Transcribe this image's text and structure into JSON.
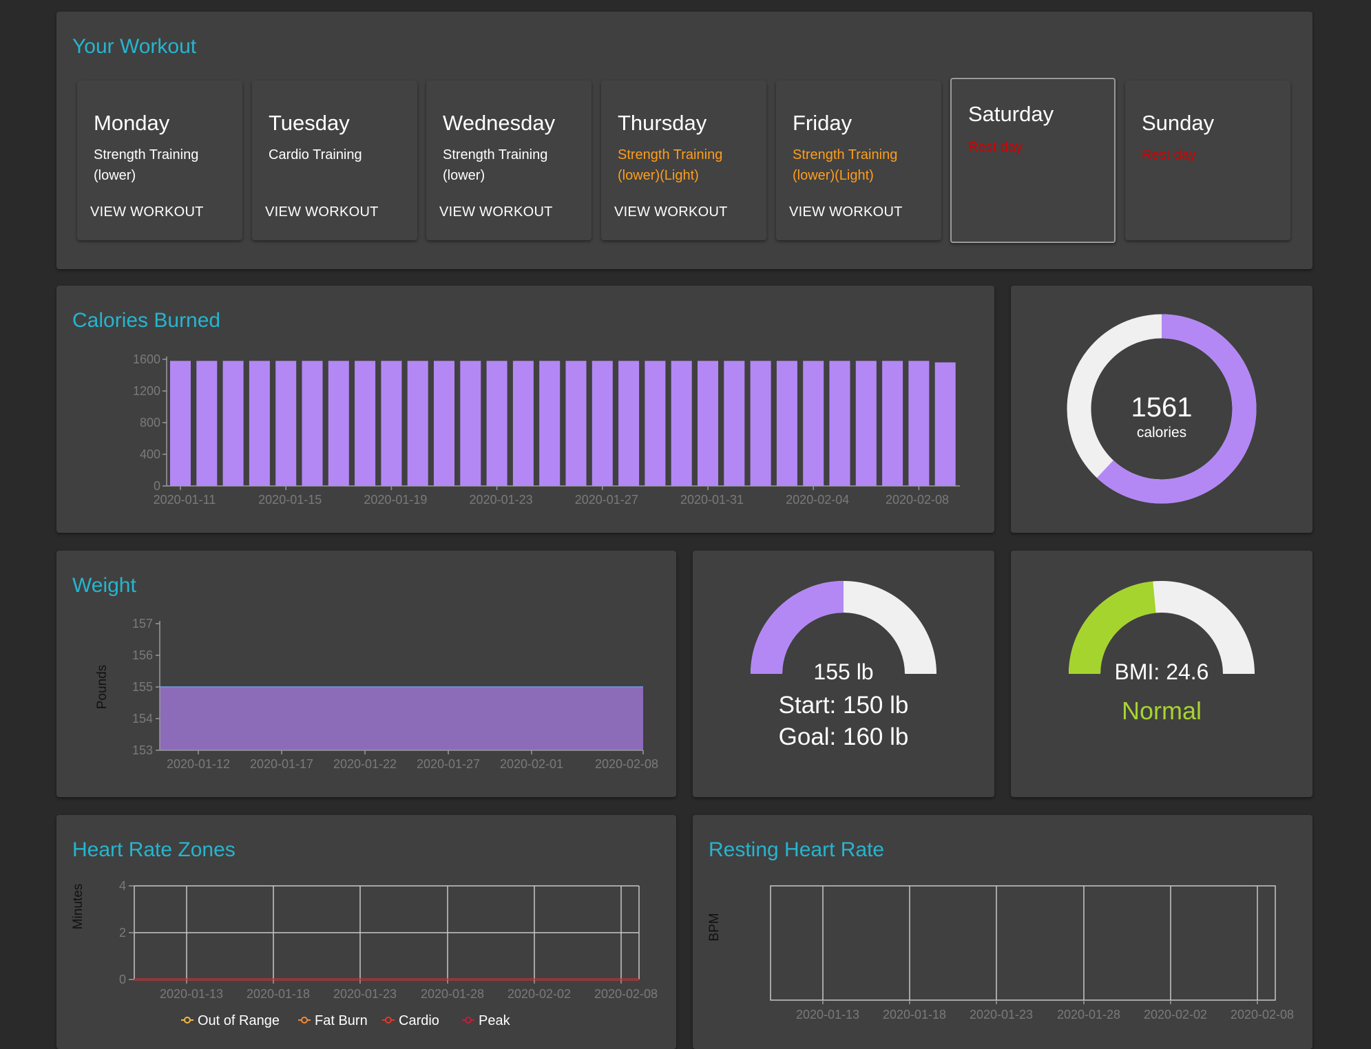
{
  "workout": {
    "title": "Your Workout",
    "days": [
      {
        "name": "Monday",
        "description": "Strength Training (lower)",
        "status": "normal",
        "action": "VIEW WORKOUT"
      },
      {
        "name": "Tuesday",
        "description": "Cardio Training",
        "status": "normal",
        "action": "VIEW WORKOUT"
      },
      {
        "name": "Wednesday",
        "description": "Strength Training (lower)",
        "status": "normal",
        "action": "VIEW WORKOUT"
      },
      {
        "name": "Thursday",
        "description": "Strength Training (lower)(Light)",
        "status": "light",
        "action": "VIEW WORKOUT"
      },
      {
        "name": "Friday",
        "description": "Strength Training (lower)(Light)",
        "status": "light",
        "action": "VIEW WORKOUT"
      },
      {
        "name": "Saturday",
        "description": "Rest day",
        "status": "rest",
        "selected": true
      },
      {
        "name": "Sunday",
        "description": "Rest day",
        "status": "rest"
      }
    ]
  },
  "calories": {
    "title": "Calories Burned",
    "donut_value": "1561",
    "donut_unit": "calories",
    "donut_fraction": 0.62
  },
  "weight": {
    "title": "Weight",
    "current": "155 lb",
    "start": "Start: 150 lb",
    "goal": "Goal: 160 lb",
    "gauge_fraction": 0.5
  },
  "bmi": {
    "label": "BMI: 24.6",
    "category": "Normal",
    "gauge_fraction": 0.47
  },
  "heart_rate_zones": {
    "title": "Heart Rate Zones"
  },
  "resting_heart_rate": {
    "title": "Resting Heart Rate"
  },
  "colors": {
    "accent": "#26b5cf",
    "bar": "#b388f5",
    "donut_track": "#f0f0f0",
    "bmi": "#a6d42e",
    "light_workout": "#ff9e1a",
    "rest": "#d10000",
    "weight_area": "#8c6bb8"
  },
  "chart_data": [
    {
      "type": "bar",
      "title": "Calories Burned",
      "xlabel": "",
      "ylabel": "",
      "ylim": [
        0,
        1600
      ],
      "yticks": [
        0,
        400,
        800,
        1200,
        1600
      ],
      "x_tick_labels": [
        "2020-01-11",
        "2020-01-15",
        "2020-01-19",
        "2020-01-23",
        "2020-01-27",
        "2020-01-31",
        "2020-02-04",
        "2020-02-08"
      ],
      "categories": [
        "2020-01-11",
        "2020-01-12",
        "2020-01-13",
        "2020-01-14",
        "2020-01-15",
        "2020-01-16",
        "2020-01-17",
        "2020-01-18",
        "2020-01-19",
        "2020-01-20",
        "2020-01-21",
        "2020-01-22",
        "2020-01-23",
        "2020-01-24",
        "2020-01-25",
        "2020-01-26",
        "2020-01-27",
        "2020-01-28",
        "2020-01-29",
        "2020-01-30",
        "2020-01-31",
        "2020-02-01",
        "2020-02-02",
        "2020-02-03",
        "2020-02-04",
        "2020-02-05",
        "2020-02-06",
        "2020-02-07",
        "2020-02-08",
        "2020-02-09"
      ],
      "values": [
        1580,
        1580,
        1580,
        1580,
        1580,
        1580,
        1580,
        1580,
        1580,
        1580,
        1580,
        1580,
        1580,
        1580,
        1580,
        1580,
        1580,
        1580,
        1580,
        1580,
        1580,
        1580,
        1580,
        1580,
        1580,
        1580,
        1580,
        1580,
        1580,
        1561
      ],
      "grid": false
    },
    {
      "type": "area",
      "title": "Weight",
      "ylabel": "Pounds",
      "ylim": [
        153,
        157
      ],
      "yticks": [
        153,
        154,
        155,
        156,
        157
      ],
      "x": [
        "2020-01-10",
        "2020-02-08"
      ],
      "values": [
        155,
        155
      ],
      "x_tick_labels": [
        "2020-01-12",
        "2020-01-17",
        "2020-01-22",
        "2020-01-27",
        "2020-02-01",
        "2020-02-08"
      ],
      "grid": false
    },
    {
      "type": "line",
      "title": "Heart Rate Zones",
      "ylabel": "Minutes",
      "ylim": [
        0,
        4
      ],
      "yticks": [
        0,
        2,
        4
      ],
      "x_tick_labels": [
        "2020-01-13",
        "2020-01-18",
        "2020-01-23",
        "2020-01-28",
        "2020-02-02",
        "2020-02-08"
      ],
      "series": [
        {
          "name": "Out of Range",
          "color": "#f5b942",
          "values": [
            0,
            0
          ]
        },
        {
          "name": "Fat Burn",
          "color": "#f08a3a",
          "values": [
            0,
            0
          ]
        },
        {
          "name": "Cardio",
          "color": "#e03a2a",
          "values": [
            0,
            0
          ]
        },
        {
          "name": "Peak",
          "color": "#c0203a",
          "values": [
            0,
            0
          ]
        }
      ],
      "grid": true,
      "legend": "bottom"
    },
    {
      "type": "line",
      "title": "Resting Heart Rate",
      "ylabel": "BPM",
      "x_tick_labels": [
        "2020-01-13",
        "2020-01-18",
        "2020-01-23",
        "2020-01-28",
        "2020-02-02",
        "2020-02-08"
      ],
      "series": [],
      "grid": true
    }
  ]
}
